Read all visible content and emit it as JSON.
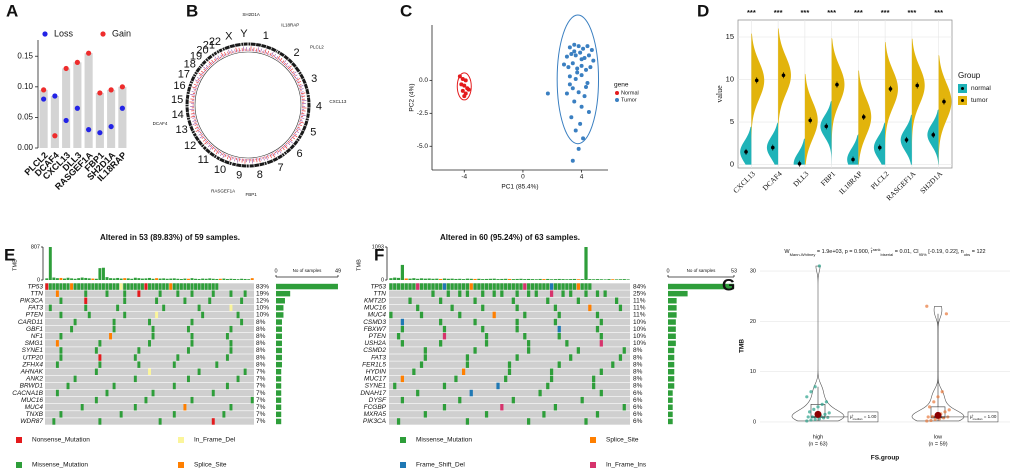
{
  "chart_data": [
    {
      "label": "A",
      "type": "bar",
      "categories": [
        "PLCL2",
        "DCAF4",
        "CXCL13",
        "DLL3",
        "RASGEF1A",
        "FBP1",
        "SH2D1A",
        "IL18RAP"
      ],
      "series": [
        {
          "name": "Loss",
          "color": "#2323e6",
          "values": [
            0.08,
            0.085,
            0.045,
            0.065,
            0.03,
            0.025,
            0.035,
            0.065
          ]
        },
        {
          "name": "Gain",
          "color": "#ee2c2c",
          "values": [
            0.095,
            0.02,
            0.13,
            0.14,
            0.155,
            0.09,
            0.095,
            0.1
          ]
        }
      ],
      "bar_color": "#d4d4d4",
      "ylim": [
        0,
        0.17
      ],
      "yticks": [
        {
          "value": 0,
          "label": "0.00"
        },
        {
          "value": 0.05,
          "label": "0.05"
        },
        {
          "value": 0.1,
          "label": "0.10"
        },
        {
          "value": 0.15,
          "label": "0.15"
        }
      ]
    },
    {
      "label": "B",
      "type": "circos",
      "chromosomes": [
        "1",
        "2",
        "3",
        "4",
        "5",
        "6",
        "7",
        "8",
        "9",
        "10",
        "11",
        "12",
        "13",
        "14",
        "15",
        "16",
        "17",
        "18",
        "19",
        "20",
        "21",
        "22",
        "X",
        "Y"
      ],
      "genes": [
        "SH2D1A",
        "IL18RAP",
        "PLCL2",
        "CXCL13",
        "FBP1",
        "RASGEF1A",
        "DCAF4"
      ]
    },
    {
      "label": "C",
      "type": "scatter",
      "xlabel": "PC1 (85.4%)",
      "ylabel": "PC2 (4%)",
      "legend_title": "gene",
      "xlim": [
        -6.2,
        5.8
      ],
      "ylim": [
        -6.8,
        4.2
      ],
      "xticks": [
        -4,
        0,
        4
      ],
      "yticks": [
        {
          "value": -5,
          "label": "-5.0"
        },
        {
          "value": -2.5,
          "label": "-2.5"
        },
        {
          "value": 0,
          "label": "0.0"
        }
      ],
      "series": [
        {
          "name": "Normal",
          "color": "#e41a1c",
          "x": [
            -4.3,
            -4.1,
            -3.9,
            -4.2,
            -4.0,
            -3.8,
            -4.1,
            -3.9,
            -3.7,
            -4.0
          ],
          "y": [
            0.3,
            0.1,
            0.0,
            -0.3,
            -0.4,
            -0.6,
            -0.8,
            -1.0,
            -0.7,
            -1.2
          ]
        },
        {
          "name": "Tumor",
          "color": "#3a7fc1",
          "x": [
            3.2,
            3.5,
            3.8,
            4.1,
            4.4,
            4.7,
            3.0,
            3.3,
            3.6,
            3.9,
            4.2,
            4.5,
            4.8,
            2.8,
            3.1,
            3.4,
            3.7,
            4.0,
            4.3,
            4.6,
            3.2,
            3.6,
            4.0,
            4.4,
            3.4,
            3.8,
            4.2,
            3.0,
            3.5,
            4.0,
            4.5,
            3.3,
            3.9,
            3.6,
            4.1,
            3.8,
            1.7,
            3.2,
            4.3,
            3.7,
            4.0,
            3.5,
            3.4
          ],
          "y": [
            2.5,
            2.7,
            2.6,
            2.4,
            2.6,
            2.3,
            1.8,
            2.0,
            1.9,
            2.1,
            1.7,
            1.9,
            1.5,
            1.2,
            1.0,
            1.3,
            0.9,
            1.1,
            0.8,
            1.0,
            0.3,
            0.1,
            0.4,
            -0.2,
            -0.6,
            -0.9,
            -1.2,
            -1.0,
            -1.6,
            -2.0,
            -2.4,
            -2.8,
            -3.3,
            -3.8,
            -4.4,
            -5.2,
            -1.0,
            -0.3,
            -0.5,
            0.6,
            1.6,
            2.2,
            -6.1
          ]
        }
      ]
    },
    {
      "label": "D",
      "type": "split_violin",
      "ylabel": "value",
      "legend_title": "Group",
      "categories": [
        "CXCL13",
        "DCAF4",
        "DLL3",
        "FBP1",
        "IL18RAP",
        "PLCL2",
        "RASGEF1A",
        "SH2D1A"
      ],
      "annotations": [
        "***",
        "***",
        "***",
        "***",
        "***",
        "***",
        "***",
        "***"
      ],
      "ylim": [
        -0.4,
        17
      ],
      "yticks": [
        0,
        5,
        10,
        15
      ],
      "grid": true,
      "series": [
        {
          "name": "normal",
          "color": "#1fb3b8",
          "values": [
            1.5,
            2.0,
            0.1,
            4.5,
            0.6,
            2.0,
            2.9,
            3.5
          ]
        },
        {
          "name": "tumor",
          "color": "#e2b40c",
          "values": [
            9.9,
            10.5,
            5.2,
            9.4,
            5.6,
            8.9,
            9.3,
            7.4
          ]
        }
      ]
    },
    {
      "label": "E",
      "type": "oncoplot",
      "title": "Altered in 53 (89.83%) of 59 samples.",
      "ylabel": "TMB",
      "ylim": [
        0,
        807
      ],
      "yticks": [
        0,
        807
      ],
      "xlabel": "No of samples",
      "xlim": [
        0,
        49
      ],
      "xticks": [
        0,
        49
      ],
      "genes": [
        "TP53",
        "TTN",
        "PIK3CA",
        "FAT3",
        "PTEN",
        "CARD11",
        "GBF1",
        "NF1",
        "SMG1",
        "SYNE1",
        "UTP20",
        "ZFHX4",
        "AHNAK",
        "ANK2",
        "BRWD1",
        "CACNA1B",
        "MUC16",
        "MUC4",
        "TNXB",
        "WDR87"
      ],
      "values": [
        83,
        19,
        12,
        10,
        10,
        8,
        8,
        8,
        8,
        8,
        8,
        8,
        7,
        7,
        7,
        7,
        7,
        7,
        7,
        7
      ],
      "value_labels": [
        "83%",
        "19%",
        "12%",
        "10%",
        "10%",
        "8%",
        "8%",
        "8%",
        "8%",
        "8%",
        "8%",
        "8%",
        "7%",
        "7%",
        "7%",
        "7%",
        "7%",
        "7%",
        "7%",
        "7%"
      ],
      "tmb": [
        40,
        807,
        60,
        45,
        50,
        35,
        55,
        40,
        30,
        45,
        60,
        50,
        40,
        35,
        30,
        290,
        300,
        70,
        45,
        40,
        50,
        35,
        45,
        40,
        30,
        55,
        45,
        35,
        40,
        50,
        30,
        45,
        35,
        40,
        30,
        35,
        40,
        30,
        25,
        35,
        30,
        45,
        30,
        25,
        35,
        30,
        40,
        30,
        25,
        30,
        35,
        25,
        30,
        25,
        20,
        30,
        25,
        20,
        45
      ],
      "legend": [
        {
          "name": "Nonsense_Mutation",
          "color": "#e41a1c"
        },
        {
          "name": "In_Frame_Del",
          "color": "#fbf59b"
        },
        {
          "name": "Missense_Mutation",
          "color": "#2e9e3a"
        },
        {
          "name": "Splice_Site",
          "color": "#ff7f00"
        }
      ]
    },
    {
      "label": "F",
      "type": "oncoplot",
      "title": "Altered in 60 (95.24%) of 63 samples.",
      "ylabel": "TMB",
      "ylim": [
        0,
        1093
      ],
      "yticks": [
        0,
        1093
      ],
      "xlabel": "No of samples",
      "xlim": [
        0,
        53
      ],
      "xticks": [
        0,
        53
      ],
      "genes": [
        "TP53",
        "TTN",
        "KMT2D",
        "MUC16",
        "MUC4",
        "CSMD3",
        "FBXW7",
        "PTEN",
        "USH2A",
        "CSMD2",
        "FAT3",
        "FER1L5",
        "HYDIN",
        "MUC17",
        "SYNE1",
        "DNAH17",
        "DYSF",
        "FCGBP",
        "MXRA5",
        "PIK3CA"
      ],
      "values": [
        84,
        25,
        11,
        11,
        11,
        10,
        10,
        10,
        10,
        8,
        8,
        8,
        8,
        8,
        8,
        6,
        6,
        6,
        6,
        6
      ],
      "value_labels": [
        "84%",
        "25%",
        "11%",
        "11%",
        "11%",
        "10%",
        "10%",
        "10%",
        "10%",
        "8%",
        "8%",
        "8%",
        "8%",
        "8%",
        "8%",
        "6%",
        "6%",
        "6%",
        "6%",
        "6%"
      ],
      "tmb": [
        60,
        80,
        70,
        500,
        50,
        45,
        60,
        40,
        55,
        45,
        50,
        40,
        45,
        35,
        50,
        40,
        45,
        35,
        40,
        30,
        45,
        40,
        35,
        40,
        30,
        35,
        40,
        45,
        30,
        35,
        40,
        35,
        30,
        35,
        40,
        30,
        35,
        30,
        25,
        35,
        30,
        35,
        25,
        30,
        35,
        30,
        25,
        30,
        35,
        25,
        30,
        1093,
        30,
        25,
        30,
        25,
        20,
        30,
        25,
        20,
        25,
        30,
        20
      ],
      "legend": [
        {
          "name": "Missense_Mutation",
          "color": "#2e9e3a"
        },
        {
          "name": "Splice_Site",
          "color": "#ff7f00"
        },
        {
          "name": "Frame_Shift_Del",
          "color": "#1f78b4"
        },
        {
          "name": "In_Frame_Ins",
          "color": "#d6336c"
        }
      ]
    },
    {
      "label": "G",
      "type": "violin_box",
      "subtitle": [
        "W",
        "Mann-Whitney",
        " = 1.9e+03, p = 0.900, ",
        "r̂",
        "rank",
        "biserial",
        " = 0.01, CI",
        "95%",
        " [-0.19, 0.22], n",
        "obs",
        " = 122"
      ],
      "xlabel": "FS.group",
      "ylabel": "TMB",
      "ylim": [
        -1.6,
        31.8
      ],
      "yticks": [
        0,
        10,
        20,
        30
      ],
      "grid": true,
      "categories": [
        "high",
        "low"
      ],
      "n_labels": [
        "(n = 63)",
        "(n = 59)"
      ],
      "series": [
        {
          "color": "#2aa18a",
          "values": [
            0.2,
            0.4,
            0.5,
            0.6,
            0.8,
            0.9,
            1,
            1,
            1.1,
            1.2,
            1.5,
            1.8,
            2,
            2.5,
            3,
            3.5,
            4,
            5,
            6,
            7,
            31
          ]
        },
        {
          "color": "#e8773a",
          "values": [
            0.2,
            0.3,
            0.5,
            0.6,
            0.8,
            1,
            1,
            1.1,
            1.3,
            1.6,
            2,
            2.4,
            3,
            4,
            5,
            6,
            21.5,
            23
          ]
        }
      ],
      "medians": [
        1,
        1
      ],
      "means": [
        1.5,
        1.3
      ],
      "mean_color": "#8b0000",
      "median_labels": [
        [
          "μ̂",
          "median",
          " = 1.00"
        ],
        [
          "μ̂",
          "median",
          " = 1.00"
        ]
      ]
    }
  ]
}
